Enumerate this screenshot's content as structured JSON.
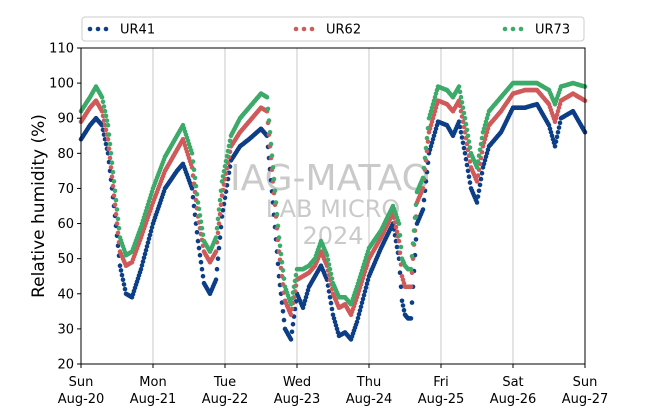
{
  "chart_data": {
    "type": "scatter",
    "ylabel": "Relative humidity (%)",
    "ylim": [
      20,
      110
    ],
    "yticks": [
      20,
      30,
      40,
      50,
      60,
      70,
      80,
      90,
      100,
      110
    ],
    "xlim": [
      "2017-08-20",
      "2017-08-27"
    ],
    "xticks": [
      {
        "date": "2017-08-20",
        "day": "Sun",
        "label": "Aug-20"
      },
      {
        "date": "2017-08-21",
        "day": "Mon",
        "label": "Aug-21"
      },
      {
        "date": "2017-08-22",
        "day": "Tue",
        "label": "Aug-22"
      },
      {
        "date": "2017-08-23",
        "day": "Wed",
        "label": "Aug-23"
      },
      {
        "date": "2017-08-24",
        "day": "Thu",
        "label": "Aug-24"
      },
      {
        "date": "2017-08-25",
        "day": "Fri",
        "label": "Aug-25"
      },
      {
        "date": "2017-08-26",
        "day": "Sat",
        "label": "Aug-26"
      },
      {
        "date": "2017-08-27",
        "day": "Sun",
        "label": "Aug-27"
      }
    ],
    "grid": "vertical at major ticks",
    "legend_position": "top",
    "watermark": [
      "IAG-MATAO",
      "LAB MICRO",
      "2024"
    ],
    "series": [
      {
        "name": "UR41",
        "color": "#0d3f87",
        "points": [
          [
            "2017-08-20T00:00",
            84
          ],
          [
            "2017-08-20T03:00",
            88
          ],
          [
            "2017-08-20T05:00",
            90
          ],
          [
            "2017-08-20T07:00",
            88
          ],
          [
            "2017-08-20T09:00",
            80
          ],
          [
            "2017-08-20T11:00",
            65
          ],
          [
            "2017-08-20T13:00",
            48
          ],
          [
            "2017-08-20T15:00",
            40
          ],
          [
            "2017-08-20T17:00",
            39
          ],
          [
            "2017-08-20T20:00",
            47
          ],
          [
            "2017-08-21T00:00",
            60
          ],
          [
            "2017-08-21T04:00",
            70
          ],
          [
            "2017-08-21T08:00",
            75
          ],
          [
            "2017-08-21T10:00",
            77
          ],
          [
            "2017-08-21T13:00",
            70
          ],
          [
            "2017-08-21T15:00",
            55
          ],
          [
            "2017-08-21T17:00",
            43
          ],
          [
            "2017-08-21T19:00",
            40
          ],
          [
            "2017-08-21T21:00",
            44
          ],
          [
            "2017-08-21T23:00",
            62
          ],
          [
            "2017-08-22T02:00",
            78
          ],
          [
            "2017-08-22T05:00",
            82
          ],
          [
            "2017-08-22T08:00",
            84
          ],
          [
            "2017-08-22T12:00",
            87
          ],
          [
            "2017-08-22T14:00",
            85
          ],
          [
            "2017-08-22T16:00",
            66
          ],
          [
            "2017-08-22T18:00",
            45
          ],
          [
            "2017-08-22T20:00",
            30
          ],
          [
            "2017-08-22T22:00",
            27
          ],
          [
            "2017-08-23T00:00",
            40
          ],
          [
            "2017-08-23T02:00",
            36
          ],
          [
            "2017-08-23T04:00",
            42
          ],
          [
            "2017-08-23T06:00",
            45
          ],
          [
            "2017-08-23T08:00",
            48
          ],
          [
            "2017-08-23T10:00",
            44
          ],
          [
            "2017-08-23T12:00",
            34
          ],
          [
            "2017-08-23T14:00",
            28
          ],
          [
            "2017-08-23T16:00",
            29
          ],
          [
            "2017-08-23T18:00",
            27
          ],
          [
            "2017-08-23T20:00",
            32
          ],
          [
            "2017-08-24T00:00",
            45
          ],
          [
            "2017-08-24T04:00",
            53
          ],
          [
            "2017-08-24T08:00",
            60
          ],
          [
            "2017-08-24T10:00",
            50
          ],
          [
            "2017-08-24T11:00",
            38
          ],
          [
            "2017-08-24T12:00",
            34
          ],
          [
            "2017-08-24T13:00",
            33
          ],
          [
            "2017-08-24T14:00",
            33
          ],
          [
            "2017-08-24T16:00",
            60
          ],
          [
            "2017-08-24T18:00",
            64
          ],
          [
            "2017-08-24T20:00",
            80
          ],
          [
            "2017-08-24T23:00",
            89
          ],
          [
            "2017-08-25T02:00",
            88
          ],
          [
            "2017-08-25T04:00",
            85
          ],
          [
            "2017-08-25T06:00",
            89
          ],
          [
            "2017-08-25T08:00",
            80
          ],
          [
            "2017-08-25T10:00",
            70
          ],
          [
            "2017-08-25T12:00",
            66
          ],
          [
            "2017-08-25T14:00",
            76
          ],
          [
            "2017-08-25T16:00",
            82
          ],
          [
            "2017-08-25T20:00",
            86
          ],
          [
            "2017-08-26T00:00",
            93
          ],
          [
            "2017-08-26T04:00",
            93
          ],
          [
            "2017-08-26T08:00",
            94
          ],
          [
            "2017-08-26T12:00",
            88
          ],
          [
            "2017-08-26T14:00",
            82
          ],
          [
            "2017-08-26T16:00",
            90
          ],
          [
            "2017-08-26T20:00",
            92
          ],
          [
            "2017-08-27T00:00",
            86
          ]
        ]
      },
      {
        "name": "UR62",
        "color": "#d05a5a",
        "points": [
          [
            "2017-08-20T00:00",
            89
          ],
          [
            "2017-08-20T03:00",
            93
          ],
          [
            "2017-08-20T05:00",
            95
          ],
          [
            "2017-08-20T07:00",
            92
          ],
          [
            "2017-08-20T09:00",
            84
          ],
          [
            "2017-08-20T11:00",
            68
          ],
          [
            "2017-08-20T13:00",
            52
          ],
          [
            "2017-08-20T15:00",
            48
          ],
          [
            "2017-08-20T17:00",
            49
          ],
          [
            "2017-08-20T20:00",
            56
          ],
          [
            "2017-08-21T00:00",
            66
          ],
          [
            "2017-08-21T04:00",
            75
          ],
          [
            "2017-08-21T08:00",
            81
          ],
          [
            "2017-08-21T10:00",
            84
          ],
          [
            "2017-08-21T13:00",
            76
          ],
          [
            "2017-08-21T15:00",
            62
          ],
          [
            "2017-08-21T17:00",
            52
          ],
          [
            "2017-08-21T19:00",
            49
          ],
          [
            "2017-08-21T21:00",
            52
          ],
          [
            "2017-08-21T23:00",
            68
          ],
          [
            "2017-08-22T02:00",
            82
          ],
          [
            "2017-08-22T05:00",
            86
          ],
          [
            "2017-08-22T08:00",
            89
          ],
          [
            "2017-08-22T12:00",
            93
          ],
          [
            "2017-08-22T14:00",
            92
          ],
          [
            "2017-08-22T16:00",
            72
          ],
          [
            "2017-08-22T18:00",
            52
          ],
          [
            "2017-08-22T20:00",
            38
          ],
          [
            "2017-08-22T22:00",
            34
          ],
          [
            "2017-08-23T00:00",
            44
          ],
          [
            "2017-08-23T02:00",
            45
          ],
          [
            "2017-08-23T04:00",
            46
          ],
          [
            "2017-08-23T06:00",
            48
          ],
          [
            "2017-08-23T08:00",
            52
          ],
          [
            "2017-08-23T10:00",
            48
          ],
          [
            "2017-08-23T12:00",
            40
          ],
          [
            "2017-08-23T14:00",
            36
          ],
          [
            "2017-08-23T16:00",
            37
          ],
          [
            "2017-08-23T18:00",
            34
          ],
          [
            "2017-08-23T20:00",
            39
          ],
          [
            "2017-08-24T00:00",
            50
          ],
          [
            "2017-08-24T04:00",
            56
          ],
          [
            "2017-08-24T08:00",
            63
          ],
          [
            "2017-08-24T10:00",
            55
          ],
          [
            "2017-08-24T11:00",
            45
          ],
          [
            "2017-08-24T12:00",
            42
          ],
          [
            "2017-08-24T13:00",
            42
          ],
          [
            "2017-08-24T14:00",
            42
          ],
          [
            "2017-08-24T16:00",
            66
          ],
          [
            "2017-08-24T18:00",
            70
          ],
          [
            "2017-08-24T20:00",
            86
          ],
          [
            "2017-08-24T23:00",
            95
          ],
          [
            "2017-08-25T02:00",
            94
          ],
          [
            "2017-08-25T04:00",
            92
          ],
          [
            "2017-08-25T06:00",
            95
          ],
          [
            "2017-08-25T08:00",
            86
          ],
          [
            "2017-08-25T10:00",
            76
          ],
          [
            "2017-08-25T12:00",
            72
          ],
          [
            "2017-08-25T14:00",
            82
          ],
          [
            "2017-08-25T16:00",
            88
          ],
          [
            "2017-08-25T20:00",
            92
          ],
          [
            "2017-08-26T00:00",
            97
          ],
          [
            "2017-08-26T04:00",
            98
          ],
          [
            "2017-08-26T08:00",
            98
          ],
          [
            "2017-08-26T12:00",
            94
          ],
          [
            "2017-08-26T14:00",
            89
          ],
          [
            "2017-08-26T16:00",
            95
          ],
          [
            "2017-08-26T20:00",
            97
          ],
          [
            "2017-08-27T00:00",
            95
          ]
        ]
      },
      {
        "name": "UR73",
        "color": "#3caa68",
        "points": [
          [
            "2017-08-20T00:00",
            92
          ],
          [
            "2017-08-20T03:00",
            96
          ],
          [
            "2017-08-20T05:00",
            99
          ],
          [
            "2017-08-20T07:00",
            96
          ],
          [
            "2017-08-20T09:00",
            88
          ],
          [
            "2017-08-20T11:00",
            72
          ],
          [
            "2017-08-20T13:00",
            56
          ],
          [
            "2017-08-20T15:00",
            51
          ],
          [
            "2017-08-20T17:00",
            52
          ],
          [
            "2017-08-20T20:00",
            59
          ],
          [
            "2017-08-21T00:00",
            70
          ],
          [
            "2017-08-21T04:00",
            79
          ],
          [
            "2017-08-21T08:00",
            85
          ],
          [
            "2017-08-21T10:00",
            88
          ],
          [
            "2017-08-21T13:00",
            80
          ],
          [
            "2017-08-21T15:00",
            66
          ],
          [
            "2017-08-21T17:00",
            55
          ],
          [
            "2017-08-21T19:00",
            52
          ],
          [
            "2017-08-21T21:00",
            56
          ],
          [
            "2017-08-21T23:00",
            72
          ],
          [
            "2017-08-22T02:00",
            85
          ],
          [
            "2017-08-22T05:00",
            90
          ],
          [
            "2017-08-22T08:00",
            93
          ],
          [
            "2017-08-22T12:00",
            97
          ],
          [
            "2017-08-22T14:00",
            96
          ],
          [
            "2017-08-22T16:00",
            76
          ],
          [
            "2017-08-22T18:00",
            56
          ],
          [
            "2017-08-22T20:00",
            42
          ],
          [
            "2017-08-22T22:00",
            37
          ],
          [
            "2017-08-23T00:00",
            47
          ],
          [
            "2017-08-23T02:00",
            47
          ],
          [
            "2017-08-23T04:00",
            48
          ],
          [
            "2017-08-23T06:00",
            50
          ],
          [
            "2017-08-23T08:00",
            55
          ],
          [
            "2017-08-23T10:00",
            51
          ],
          [
            "2017-08-23T12:00",
            43
          ],
          [
            "2017-08-23T14:00",
            39
          ],
          [
            "2017-08-23T16:00",
            39
          ],
          [
            "2017-08-23T18:00",
            37
          ],
          [
            "2017-08-23T20:00",
            42
          ],
          [
            "2017-08-24T00:00",
            53
          ],
          [
            "2017-08-24T04:00",
            58
          ],
          [
            "2017-08-24T08:00",
            65
          ],
          [
            "2017-08-24T10:00",
            60
          ],
          [
            "2017-08-24T11:00",
            50
          ],
          [
            "2017-08-24T12:00",
            48
          ],
          [
            "2017-08-24T13:00",
            47
          ],
          [
            "2017-08-24T14:00",
            47
          ],
          [
            "2017-08-24T16:00",
            69
          ],
          [
            "2017-08-24T18:00",
            73
          ],
          [
            "2017-08-24T20:00",
            90
          ],
          [
            "2017-08-24T23:00",
            99
          ],
          [
            "2017-08-25T02:00",
            98
          ],
          [
            "2017-08-25T04:00",
            96
          ],
          [
            "2017-08-25T06:00",
            99
          ],
          [
            "2017-08-25T08:00",
            90
          ],
          [
            "2017-08-25T10:00",
            80
          ],
          [
            "2017-08-25T12:00",
            76
          ],
          [
            "2017-08-25T14:00",
            86
          ],
          [
            "2017-08-25T16:00",
            92
          ],
          [
            "2017-08-25T20:00",
            96
          ],
          [
            "2017-08-26T00:00",
            100
          ],
          [
            "2017-08-26T04:00",
            100
          ],
          [
            "2017-08-26T08:00",
            100
          ],
          [
            "2017-08-26T12:00",
            98
          ],
          [
            "2017-08-26T14:00",
            94
          ],
          [
            "2017-08-26T16:00",
            99
          ],
          [
            "2017-08-26T20:00",
            100
          ],
          [
            "2017-08-27T00:00",
            99
          ]
        ]
      }
    ]
  }
}
